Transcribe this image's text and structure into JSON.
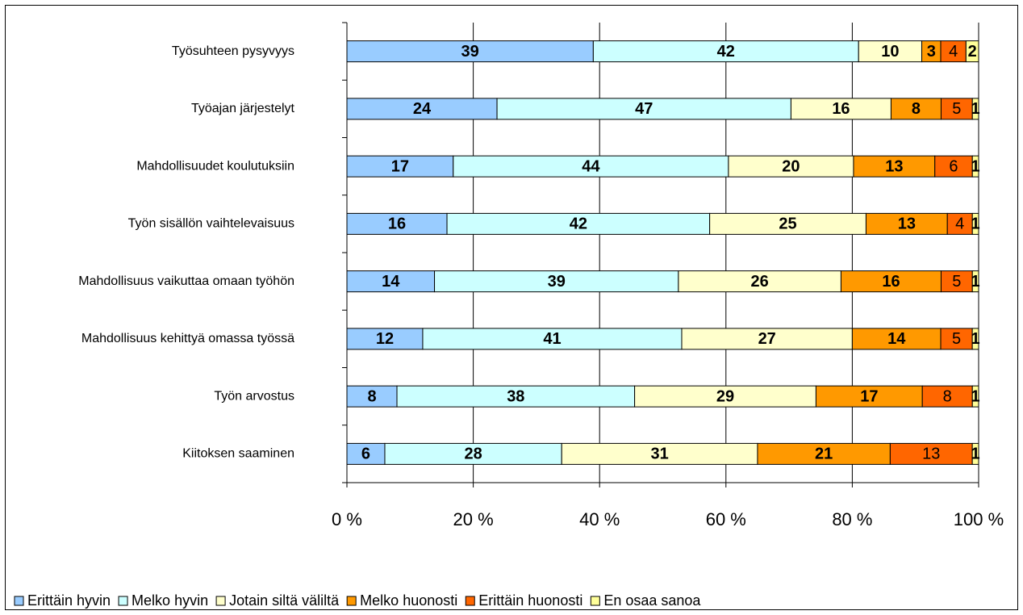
{
  "chart_data": {
    "type": "bar",
    "orientation": "horizontal",
    "stacked": "percent",
    "categories": [
      "Työsuhteen pysyvyys",
      "Työajan järjestelyt",
      "Mahdollisuudet koulutuksiin",
      "Työn sisällön vaihtelevaisuus",
      "Mahdollisuus vaikuttaa omaan työhön",
      "Mahdollisuus kehittyä omassa työssä",
      "Työn arvostus",
      "Kiitoksen saaminen"
    ],
    "series": [
      {
        "name": "Erittäin hyvin",
        "color": "#99ccff",
        "values": [
          39,
          24,
          17,
          16,
          14,
          12,
          8,
          6
        ]
      },
      {
        "name": "Melko hyvin",
        "color": "#ccffff",
        "values": [
          42,
          47,
          44,
          42,
          39,
          41,
          38,
          28
        ]
      },
      {
        "name": "Jotain siltä väliltä",
        "color": "#ffffcc",
        "values": [
          10,
          16,
          20,
          25,
          26,
          27,
          29,
          31
        ]
      },
      {
        "name": "Melko huonosti",
        "color": "#ff9900",
        "values": [
          3,
          8,
          13,
          13,
          16,
          14,
          17,
          21
        ]
      },
      {
        "name": "Erittäin huonosti",
        "color": "#ff6600",
        "values": [
          4,
          5,
          6,
          4,
          5,
          5,
          8,
          13
        ]
      },
      {
        "name": "En osaa sanoa",
        "color": "#ffff99",
        "values": [
          2,
          1,
          1,
          1,
          1,
          1,
          1,
          1
        ]
      }
    ],
    "xlim": [
      0,
      100
    ],
    "xticks": [
      {
        "value": 0,
        "label": "0 %"
      },
      {
        "value": 20,
        "label": "20 %"
      },
      {
        "value": 40,
        "label": "40 %"
      },
      {
        "value": 60,
        "label": "60 %"
      },
      {
        "value": 80,
        "label": "80 %"
      },
      {
        "value": 100,
        "label": "100 %"
      }
    ],
    "grid": true,
    "legend": "bottom"
  }
}
